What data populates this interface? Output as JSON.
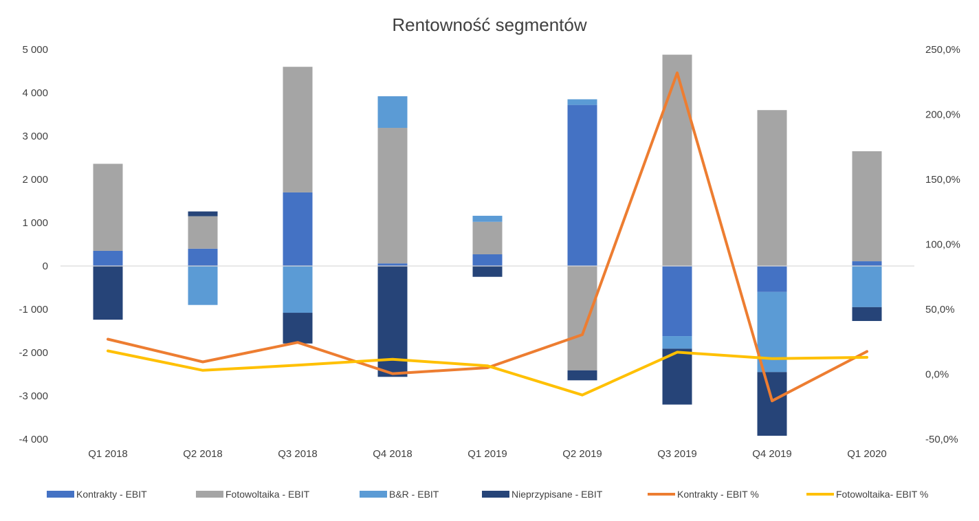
{
  "chart_data": {
    "type": "bar",
    "title": "Rentowność segmentów",
    "categories": [
      "Q1 2018",
      "Q2 2018",
      "Q3 2018",
      "Q4 2018",
      "Q1 2019",
      "Q2 2019",
      "Q3 2019",
      "Q4 2019",
      "Q1 2020"
    ],
    "stacked": true,
    "y_left": {
      "ylim": [
        -4000,
        5000
      ],
      "ticks": [
        5000,
        4000,
        3000,
        2000,
        1000,
        0,
        -1000,
        -2000,
        -3000,
        -4000
      ],
      "tick_labels": [
        "5 000",
        "4 000",
        "3 000",
        "2 000",
        "1 000",
        "0",
        "-1 000",
        "-2 000",
        "-3 000",
        "-4 000"
      ]
    },
    "y_right": {
      "ylim": [
        -50,
        250
      ],
      "ticks": [
        250,
        200,
        150,
        100,
        50,
        0,
        -50
      ],
      "tick_labels": [
        "250,0%",
        "200,0%",
        "150,0%",
        "100,0%",
        "50,0%",
        "0,0%",
        "-50,0%"
      ]
    },
    "grid": false,
    "legend_position": "bottom",
    "series": [
      {
        "name": "Kontrakty - EBIT",
        "type": "bar",
        "axis": "left",
        "color": "#4472C4",
        "values": [
          350,
          400,
          1700,
          60,
          270,
          3720,
          -1620,
          -600,
          110
        ]
      },
      {
        "name": "Fotowoltaika - EBIT",
        "type": "bar",
        "axis": "left",
        "color": "#A5A5A5",
        "values": [
          2010,
          750,
          2900,
          3130,
          750,
          -2410,
          4880,
          3600,
          2540
        ]
      },
      {
        "name": "B&R - EBIT",
        "type": "bar",
        "axis": "left",
        "color": "#5B9BD5",
        "values": [
          0,
          -900,
          -1080,
          730,
          140,
          130,
          -290,
          -1850,
          -950
        ]
      },
      {
        "name": "Nieprzypisane - EBIT",
        "type": "bar",
        "axis": "left",
        "color": "#264478",
        "values": [
          -1240,
          110,
          -710,
          -2560,
          -250,
          -230,
          -1290,
          -1470,
          -320
        ]
      },
      {
        "name": "Kontrakty - EBIT %",
        "type": "line",
        "axis": "right",
        "color": "#ED7D31",
        "values": [
          27,
          9.5,
          24.5,
          0.5,
          5,
          30.5,
          232,
          -20.5,
          17.5
        ]
      },
      {
        "name": "Fotowoltaika- EBIT %",
        "type": "line",
        "axis": "right",
        "color": "#FFC000",
        "values": [
          18,
          3,
          7,
          11.5,
          6.5,
          -16,
          17,
          12,
          13
        ]
      }
    ]
  }
}
